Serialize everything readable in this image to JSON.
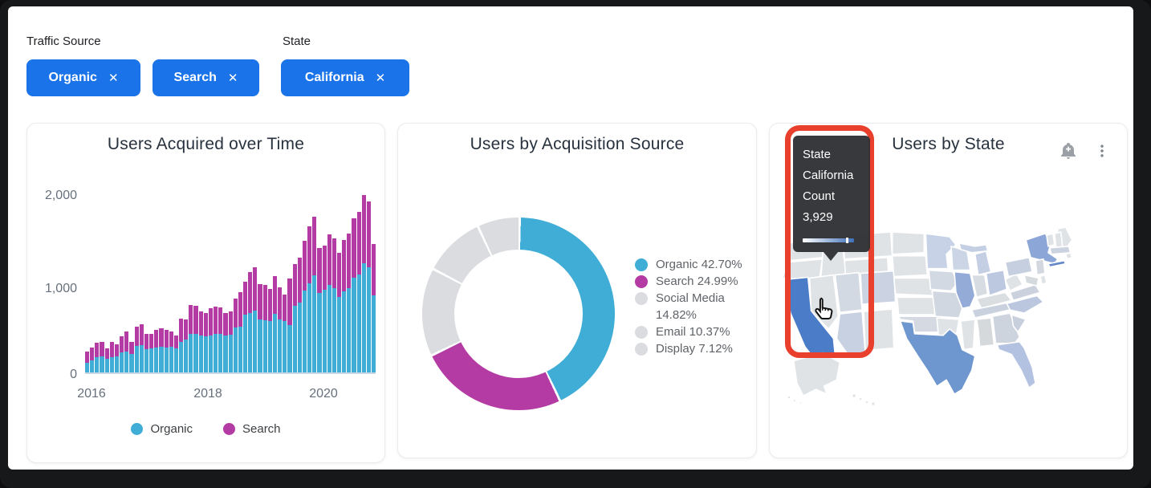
{
  "filters": {
    "groups": [
      {
        "label": "Traffic Source",
        "chips": [
          {
            "label": "Organic"
          },
          {
            "label": "Search"
          }
        ]
      },
      {
        "label": "State",
        "chips": [
          {
            "label": "California"
          }
        ]
      }
    ],
    "chip_bg": "#1a73e8",
    "chip_text_color": "#ffffff",
    "remove_icon": "✕"
  },
  "map_card": {
    "header_icons": [
      "notification-add",
      "more-vertical"
    ],
    "tooltip": {
      "lines": [
        "State",
        "California",
        "Count",
        "3,929"
      ],
      "scale_from": "#ffffff",
      "scale_to": "#3e6fb7",
      "marker_pct": 85
    },
    "annotation_color": "#e8402c"
  },
  "chart_data": [
    {
      "type": "bar",
      "stacked": true,
      "title": "Users Acquired over Time",
      "x_interval": "month",
      "x_range": [
        "2016-01",
        "2020-11"
      ],
      "x_tick_labels": [
        "2016",
        "2018",
        "2020"
      ],
      "y_tick_labels": [
        "2,000",
        "1,000",
        "0"
      ],
      "ylim": [
        0,
        2150
      ],
      "legend_position": "bottom",
      "series": [
        {
          "name": "Organic",
          "color": "#3fadd6",
          "values": [
            110,
            140,
            175,
            190,
            160,
            180,
            190,
            235,
            245,
            220,
            310,
            320,
            270,
            280,
            290,
            300,
            290,
            300,
            280,
            360,
            385,
            445,
            450,
            430,
            420,
            435,
            450,
            445,
            430,
            440,
            520,
            535,
            670,
            690,
            720,
            620,
            610,
            595,
            685,
            620,
            600,
            550,
            775,
            810,
            955,
            1035,
            1135,
            930,
            960,
            1015,
            985,
            880,
            940,
            980,
            1105,
            1140,
            1275,
            1225,
            900
          ]
        },
        {
          "name": "Search",
          "color": "#b43aa4",
          "values": [
            130,
            150,
            170,
            165,
            120,
            175,
            135,
            190,
            230,
            135,
            225,
            240,
            175,
            170,
            205,
            210,
            205,
            180,
            150,
            265,
            230,
            345,
            325,
            285,
            270,
            310,
            320,
            315,
            265,
            275,
            345,
            405,
            390,
            475,
            505,
            410,
            410,
            380,
            435,
            370,
            310,
            540,
            485,
            530,
            575,
            670,
            680,
            520,
            519,
            593,
            575,
            518,
            599,
            634,
            695,
            730,
            795,
            764,
            600
          ]
        }
      ]
    },
    {
      "type": "pie",
      "donut": true,
      "title": "Users by Acquisition Source",
      "legend_position": "right",
      "slices": [
        {
          "label": "Organic",
          "pct": 42.7,
          "color": "#3fadd6"
        },
        {
          "label": "Search",
          "pct": 24.99,
          "color": "#b43aa4"
        },
        {
          "label": "Social Media",
          "pct": 14.82,
          "color": "#dadce0"
        },
        {
          "label": "Email",
          "pct": 10.37,
          "color": "#dadce0"
        },
        {
          "label": "Display",
          "pct": 7.12,
          "color": "#dadce0"
        }
      ],
      "legend_labels": [
        "Organic 42.70%",
        "Search 24.99%",
        "Social Media 14.82%",
        "Email 10.37%",
        "Display 7.12%"
      ]
    },
    {
      "type": "heatmap",
      "subtype": "choropleth-map",
      "title": "Users by State",
      "region": "United States",
      "hovered_state": {
        "name": "California",
        "count": "3,929"
      },
      "state_colors": {
        "CA": "#4a7cc7",
        "TX": "#6e96cf",
        "NY": "#8ca6d7",
        "CT": "#6487c8",
        "IL": "#94abd8",
        "OH": "#bcc8e0",
        "FL": "#b3c2e1",
        "NC": "#bbc7de",
        "MI": "#c5cfe4",
        "MN": "#c8d2e6",
        "WI": "#ccd5e6",
        "PA": "#c6cfe0",
        "TN": "#c9d1de",
        "CO": "#cbd3e3",
        "AZ": "#c8d1e2",
        "UT": "#d2d9e3",
        "OK": "#d5dae2",
        "IA": "#d3d9e3",
        "MO": "#d0d7e1",
        "VA": "#cbd2de",
        "SC": "#c8d0dd",
        "GA": "#cdd4de",
        "MA": "#ccd3e0",
        "NJ": "#d3d8e0",
        "MD": "#d5dade",
        "IN": "#d7dbe2",
        "KY": "#dbdee0",
        "AL": "#d6d9db"
      },
      "default_state_color": "#e0e3e6"
    }
  ]
}
